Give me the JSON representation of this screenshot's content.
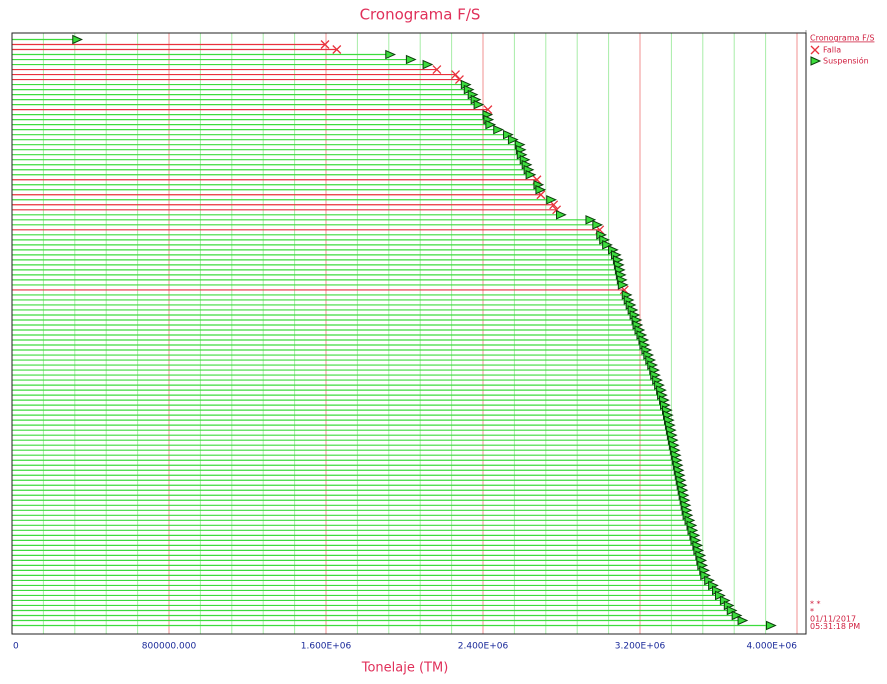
{
  "chart_data": {
    "type": "fs_timeline",
    "title": "Cronograma F/S",
    "x_label": "Tonelaje (TM)",
    "legend_title": "Cronograma F/S",
    "legend": "right",
    "notes": [
      "* *",
      "*",
      "01/11/2017",
      "05:31:18 PM"
    ],
    "xlim": [
      0,
      4000000
    ],
    "xticks": [
      0,
      {
        "value": 800000,
        "label": "800000.000"
      },
      {
        "value": 1600000,
        "label": "1.600E+06"
      },
      {
        "value": 2400000,
        "label": "2.400E+06"
      },
      {
        "value": 3200000,
        "label": "3.200E+06"
      },
      {
        "value": 4000000,
        "label": "4.000E+06"
      }
    ],
    "minor_xticks": [
      160000,
      320000,
      480000,
      640000,
      960000,
      1120000,
      1280000,
      1440000,
      1760000,
      1920000,
      2080000,
      2240000,
      2560000,
      2720000,
      2880000,
      3040000,
      3360000,
      3520000,
      3680000,
      3840000
    ],
    "grid": true,
    "series": [
      {
        "name": "Falla",
        "color": "#e8323c",
        "marker": "x",
        "values": [
          null,
          1595000,
          1655000,
          null,
          null,
          null,
          2165000,
          2260000,
          2280000,
          null,
          null,
          null,
          null,
          null,
          2425000,
          null,
          null,
          null,
          null,
          null,
          null,
          null,
          null,
          null,
          null,
          null,
          null,
          null,
          2675000,
          null,
          null,
          2695000,
          null,
          2760000,
          2775000,
          null,
          null,
          null,
          2995000,
          null,
          null,
          null,
          null,
          null,
          null,
          null,
          null,
          null,
          null,
          null,
          3120000,
          null,
          null,
          null,
          null,
          null,
          null,
          null,
          null,
          null,
          null,
          null,
          null,
          null,
          null,
          null,
          null,
          null,
          null,
          null,
          null,
          null,
          null,
          null,
          null,
          null,
          null,
          null,
          null,
          null,
          null,
          null,
          null,
          null,
          null,
          null,
          null,
          null,
          null,
          null,
          null,
          null,
          null,
          null,
          null,
          null,
          null,
          null,
          null,
          null,
          null,
          null,
          null,
          null,
          null,
          null,
          null,
          null,
          null,
          null,
          null,
          null,
          null,
          null,
          null,
          null,
          null,
          null
        ]
      },
      {
        "name": "Suspensión",
        "color": "#3ddc3d",
        "marker": "triangle",
        "values": [
          330000,
          null,
          null,
          1925000,
          2030000,
          2115000,
          null,
          null,
          null,
          2310000,
          2325000,
          2345000,
          2360000,
          2375000,
          null,
          2420000,
          2425000,
          2435000,
          2475000,
          2525000,
          2550000,
          2585000,
          2590000,
          2595000,
          2610000,
          2620000,
          2630000,
          2640000,
          null,
          2680000,
          2690000,
          null,
          2745000,
          null,
          null,
          2795000,
          2945000,
          2980000,
          null,
          3000000,
          3015000,
          3030000,
          3060000,
          3075000,
          3085000,
          3090000,
          3095000,
          3100000,
          3105000,
          3110000,
          null,
          3130000,
          3140000,
          3150000,
          3160000,
          3170000,
          3180000,
          3185000,
          3195000,
          3205000,
          3215000,
          3220000,
          3230000,
          3240000,
          3250000,
          3260000,
          3270000,
          3275000,
          3285000,
          3295000,
          3305000,
          3310000,
          3320000,
          3325000,
          3335000,
          3340000,
          3345000,
          3350000,
          3355000,
          3360000,
          3365000,
          3370000,
          3375000,
          3380000,
          3385000,
          3390000,
          3395000,
          3400000,
          3405000,
          3410000,
          3415000,
          3420000,
          3425000,
          3430000,
          3435000,
          3440000,
          3450000,
          3460000,
          3465000,
          3475000,
          3480000,
          3490000,
          3495000,
          3505000,
          3510000,
          3515000,
          3525000,
          3530000,
          3550000,
          3570000,
          3590000,
          3605000,
          3630000,
          3650000,
          3665000,
          3690000,
          3720000,
          3865000
        ]
      }
    ]
  }
}
